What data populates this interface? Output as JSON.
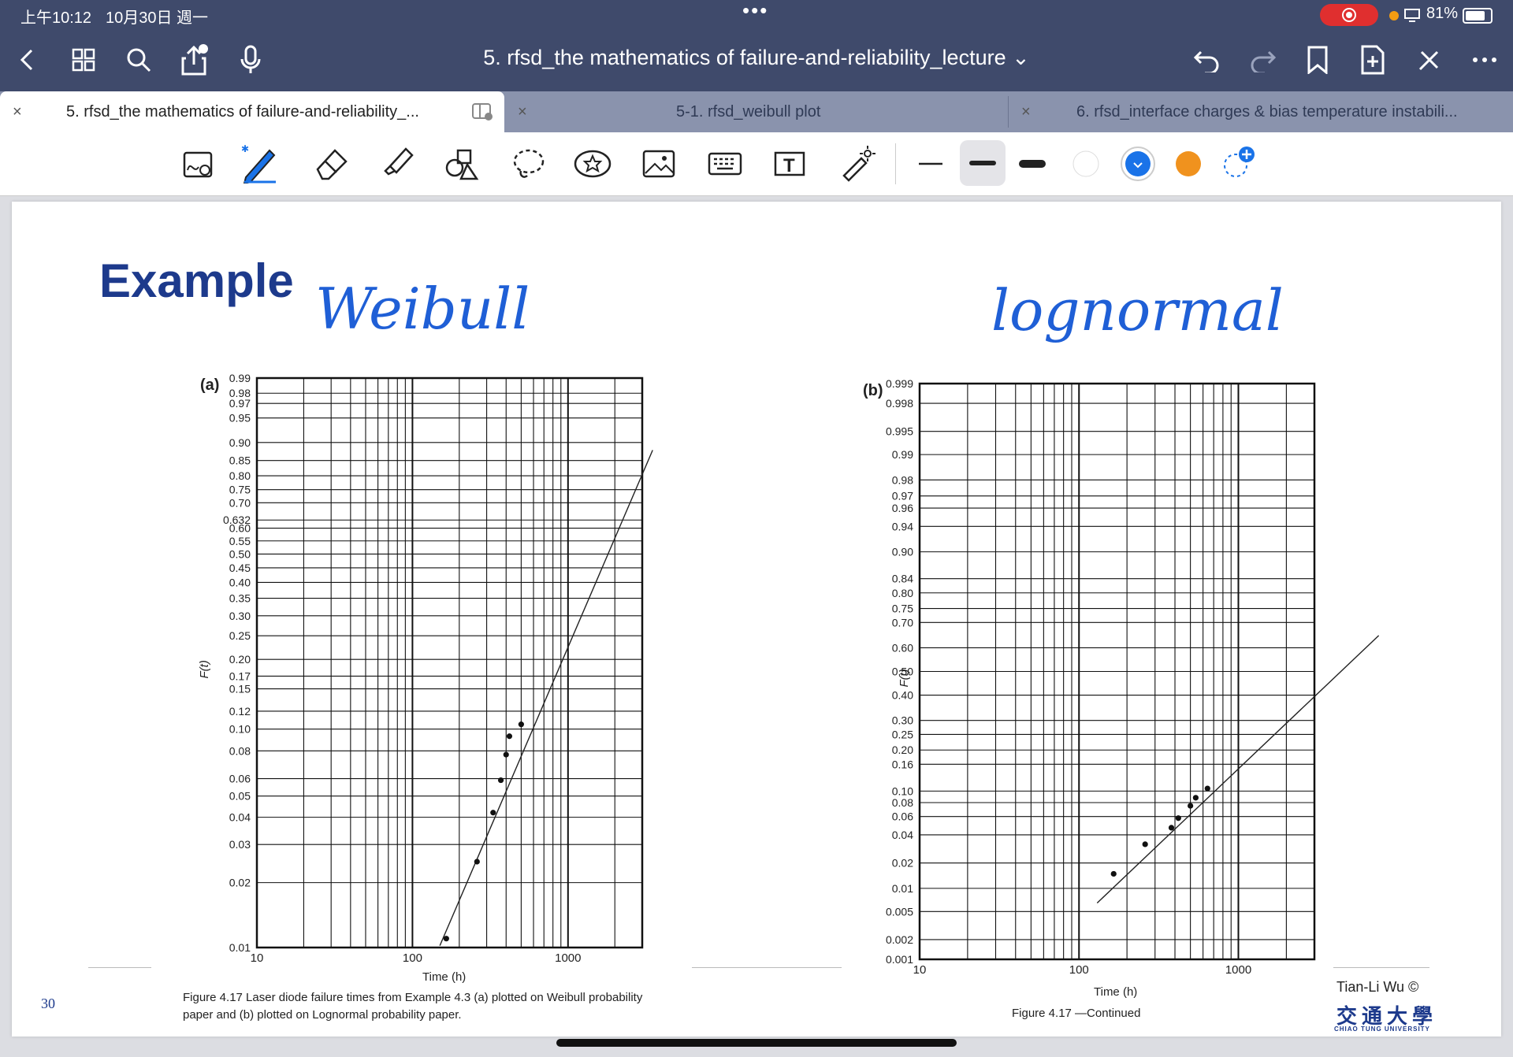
{
  "status_bar": {
    "time": "上午10:12",
    "date": "10月30日 週一",
    "battery": "81%"
  },
  "toolbar": {
    "doc_title": "5. rfsd_the mathematics of failure-and-reliability_lecture ⌄"
  },
  "tabs": [
    {
      "label": "5. rfsd_the mathematics of failure-and-reliability_...",
      "close": "×"
    },
    {
      "label": "5-1. rfsd_weibull plot",
      "close": "×"
    },
    {
      "label": "6. rfsd_interface charges & bias temperature instabili...",
      "close": "×"
    }
  ],
  "tools": {
    "colors": {
      "white": "#ffffff",
      "blue": "#1a73e8",
      "orange": "#f0921e"
    }
  },
  "slide": {
    "title": "Example",
    "page_number": "30",
    "author": "Tian-Li Wu ©",
    "university_cn": "交通大學",
    "university_en": "CHIAO TUNG UNIVERSITY",
    "annotation_left": "Weibull",
    "annotation_right": "lognormal"
  },
  "chart_data": [
    {
      "type": "scatter",
      "panel_label": "(a)",
      "paper": "Weibull probability paper",
      "ylabel": "F(t)",
      "xlabel": "Time (h)",
      "x_ticks": [
        "10",
        "100",
        "1000"
      ],
      "y_ticks": [
        "0.99",
        "0.98",
        "0.97",
        "0.95",
        "0.90",
        "0.85",
        "0.80",
        "0.75",
        "0.70",
        "0.632",
        "0.60",
        "0.55",
        "0.50",
        "0.45",
        "0.40",
        "0.35",
        "0.30",
        "0.25",
        "0.20",
        "0.17",
        "0.15",
        "0.12",
        "0.10",
        "0.08",
        "0.06",
        "0.05",
        "0.04",
        "0.03",
        "0.02",
        "0.01"
      ],
      "x_scale": "log",
      "y_scale": "weibull",
      "grid": true,
      "series": [
        {
          "x": [
            165,
            260,
            330,
            370,
            400,
            420,
            500
          ],
          "y": [
            0.011,
            0.025,
            0.042,
            0.059,
            0.077,
            0.093,
            0.105
          ]
        }
      ],
      "fit_line": {
        "x": [
          150,
          3500
        ],
        "y": [
          0.0102,
          0.88
        ]
      }
    },
    {
      "type": "scatter",
      "panel_label": "(b)",
      "paper": "Lognormal probability paper",
      "ylabel": "F(t)",
      "xlabel": "Time (h)",
      "x_ticks": [
        "10",
        "100",
        "1000"
      ],
      "y_ticks": [
        "0.999",
        "0.998",
        "0.995",
        "0.99",
        "0.98",
        "0.97",
        "0.96",
        "0.94",
        "0.90",
        "0.84",
        "0.80",
        "0.75",
        "0.70",
        "0.60",
        "0.50",
        "0.40",
        "0.30",
        "0.25",
        "0.20",
        "0.16",
        "0.10",
        "0.08",
        "0.06",
        "0.04",
        "0.02",
        "0.01",
        "0.005",
        "0.002",
        "0.001"
      ],
      "x_scale": "log",
      "y_scale": "lognormal",
      "grid": true,
      "series": [
        {
          "x": [
            165,
            260,
            380,
            420,
            500,
            540,
            640
          ],
          "y": [
            0.015,
            0.032,
            0.047,
            0.058,
            0.075,
            0.088,
            0.105
          ]
        }
      ],
      "fit_line": {
        "x": [
          130,
          7600
        ],
        "y": [
          0.0065,
          0.65
        ]
      }
    }
  ],
  "captions": {
    "left": "Figure 4.17  Laser diode failure times from Example 4.3 (a) plotted on Weibull probability paper and (b) plotted on Lognormal probability paper.",
    "right": "Figure 4.17  —Continued"
  }
}
